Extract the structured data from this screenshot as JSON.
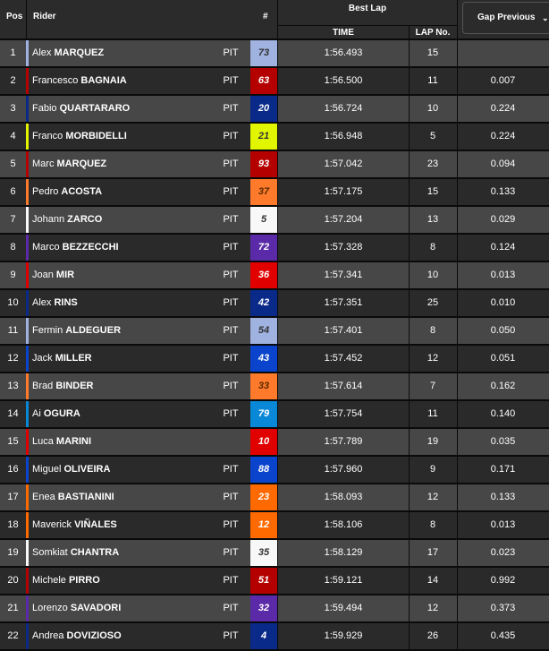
{
  "header": {
    "pos": "Pos",
    "rider": "Rider",
    "number": "#",
    "best_lap": "Best Lap",
    "time": "TIME",
    "lap_no": "LAP No.",
    "gap_select": "Gap Previous",
    "gap_icon": "chevron-down-icon"
  },
  "rows": [
    {
      "pos": "1",
      "first": "Alex",
      "last": "MARQUEZ",
      "pit": "PIT",
      "num": "73",
      "color": "#9fb2e0",
      "text": "#333",
      "time": "1:56.493",
      "lap": "15",
      "gap": ""
    },
    {
      "pos": "2",
      "first": "Francesco",
      "last": "BAGNAIA",
      "pit": "PIT",
      "num": "63",
      "color": "#b50000",
      "text": "#fff",
      "time": "1:56.500",
      "lap": "11",
      "gap": "0.007"
    },
    {
      "pos": "3",
      "first": "Fabio",
      "last": "QUARTARARO",
      "pit": "PIT",
      "num": "20",
      "color": "#0a2a8a",
      "text": "#fff",
      "time": "1:56.724",
      "lap": "10",
      "gap": "0.224"
    },
    {
      "pos": "4",
      "first": "Franco",
      "last": "MORBIDELLI",
      "pit": "PIT",
      "num": "21",
      "color": "#e2f500",
      "text": "#333",
      "time": "1:56.948",
      "lap": "5",
      "gap": "0.224"
    },
    {
      "pos": "5",
      "first": "Marc",
      "last": "MARQUEZ",
      "pit": "PIT",
      "num": "93",
      "color": "#b50000",
      "text": "#fff",
      "time": "1:57.042",
      "lap": "23",
      "gap": "0.094"
    },
    {
      "pos": "6",
      "first": "Pedro",
      "last": "ACOSTA",
      "pit": "PIT",
      "num": "37",
      "color": "#ff7a2a",
      "text": "#5a2a00",
      "time": "1:57.175",
      "lap": "15",
      "gap": "0.133"
    },
    {
      "pos": "7",
      "first": "Johann",
      "last": "ZARCO",
      "pit": "PIT",
      "num": "5",
      "color": "#f8f8f8",
      "text": "#333",
      "time": "1:57.204",
      "lap": "13",
      "gap": "0.029"
    },
    {
      "pos": "8",
      "first": "Marco",
      "last": "BEZZECCHI",
      "pit": "PIT",
      "num": "72",
      "color": "#5b2aa8",
      "text": "#fff",
      "time": "1:57.328",
      "lap": "8",
      "gap": "0.124"
    },
    {
      "pos": "9",
      "first": "Joan",
      "last": "MIR",
      "pit": "PIT",
      "num": "36",
      "color": "#e00000",
      "text": "#fff",
      "time": "1:57.341",
      "lap": "10",
      "gap": "0.013"
    },
    {
      "pos": "10",
      "first": "Alex",
      "last": "RINS",
      "pit": "PIT",
      "num": "42",
      "color": "#0a2a8a",
      "text": "#fff",
      "time": "1:57.351",
      "lap": "25",
      "gap": "0.010"
    },
    {
      "pos": "11",
      "first": "Fermin",
      "last": "ALDEGUER",
      "pit": "PIT",
      "num": "54",
      "color": "#9fb2e0",
      "text": "#333",
      "time": "1:57.401",
      "lap": "8",
      "gap": "0.050"
    },
    {
      "pos": "12",
      "first": "Jack",
      "last": "MILLER",
      "pit": "PIT",
      "num": "43",
      "color": "#0a44cc",
      "text": "#fff",
      "time": "1:57.452",
      "lap": "12",
      "gap": "0.051"
    },
    {
      "pos": "13",
      "first": "Brad",
      "last": "BINDER",
      "pit": "PIT",
      "num": "33",
      "color": "#ff7a2a",
      "text": "#5a2a00",
      "time": "1:57.614",
      "lap": "7",
      "gap": "0.162"
    },
    {
      "pos": "14",
      "first": "Ai",
      "last": "OGURA",
      "pit": "PIT",
      "num": "79",
      "color": "#0a88d8",
      "text": "#fff",
      "time": "1:57.754",
      "lap": "11",
      "gap": "0.140"
    },
    {
      "pos": "15",
      "first": "Luca",
      "last": "MARINI",
      "pit": "",
      "num": "10",
      "color": "#e00000",
      "text": "#fff",
      "time": "1:57.789",
      "lap": "19",
      "gap": "0.035"
    },
    {
      "pos": "16",
      "first": "Miguel",
      "last": "OLIVEIRA",
      "pit": "PIT",
      "num": "88",
      "color": "#0a44cc",
      "text": "#fff",
      "time": "1:57.960",
      "lap": "9",
      "gap": "0.171"
    },
    {
      "pos": "17",
      "first": "Enea",
      "last": "BASTIANINI",
      "pit": "PIT",
      "num": "23",
      "color": "#ff6a00",
      "text": "#fff",
      "time": "1:58.093",
      "lap": "12",
      "gap": "0.133"
    },
    {
      "pos": "18",
      "first": "Maverick",
      "last": "VIÑALES",
      "pit": "PIT",
      "num": "12",
      "color": "#ff6a00",
      "text": "#fff",
      "time": "1:58.106",
      "lap": "8",
      "gap": "0.013"
    },
    {
      "pos": "19",
      "first": "Somkiat",
      "last": "CHANTRA",
      "pit": "PIT",
      "num": "35",
      "color": "#f8f8f8",
      "text": "#333",
      "time": "1:58.129",
      "lap": "17",
      "gap": "0.023"
    },
    {
      "pos": "20",
      "first": "Michele",
      "last": "PIRRO",
      "pit": "PIT",
      "num": "51",
      "color": "#b50000",
      "text": "#fff",
      "time": "1:59.121",
      "lap": "14",
      "gap": "0.992"
    },
    {
      "pos": "21",
      "first": "Lorenzo",
      "last": "SAVADORI",
      "pit": "PIT",
      "num": "32",
      "color": "#5b2aa8",
      "text": "#fff",
      "time": "1:59.494",
      "lap": "12",
      "gap": "0.373"
    },
    {
      "pos": "22",
      "first": "Andrea",
      "last": "DOVIZIOSO",
      "pit": "PIT",
      "num": "4",
      "color": "#0a2a8a",
      "text": "#fff",
      "time": "1:59.929",
      "lap": "26",
      "gap": "0.435"
    }
  ]
}
